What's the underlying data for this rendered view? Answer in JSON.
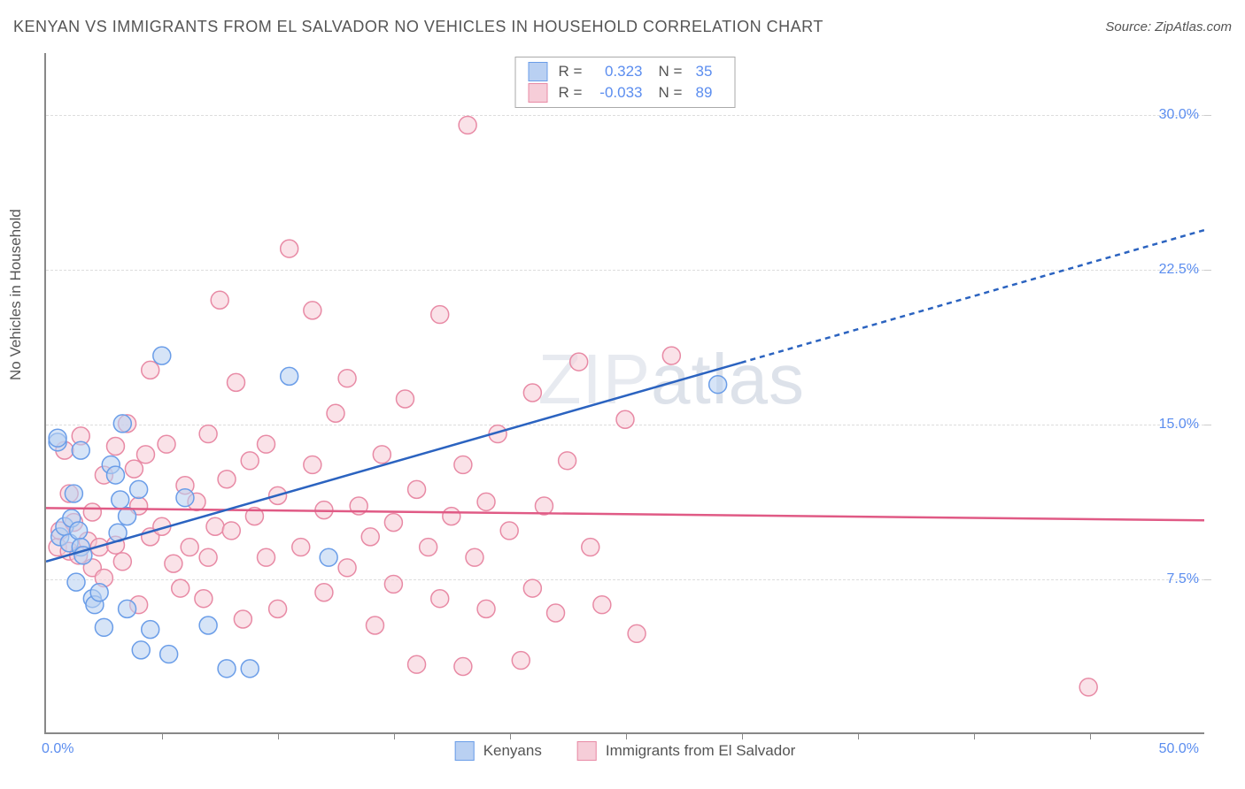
{
  "title": "KENYAN VS IMMIGRANTS FROM EL SALVADOR NO VEHICLES IN HOUSEHOLD CORRELATION CHART",
  "source_label": "Source: ",
  "source_value": "ZipAtlas.com",
  "ylabel": "No Vehicles in Household",
  "watermark_a": "ZIP",
  "watermark_b": "atlas",
  "chart": {
    "type": "scatter",
    "xlim": [
      0,
      50
    ],
    "ylim": [
      0,
      33
    ],
    "xtick_labels": {
      "min": "0.0%",
      "max": "50.0%"
    },
    "ytick_labels": [
      "7.5%",
      "15.0%",
      "22.5%",
      "30.0%"
    ],
    "ytick_values": [
      7.5,
      15.0,
      22.5,
      30.0
    ],
    "xtick_minor": [
      5,
      10,
      15,
      20,
      25,
      30,
      35,
      40,
      45
    ],
    "grid_color": "#dddddd",
    "axis_color": "#888888",
    "background_color": "#ffffff",
    "tick_label_color": "#5b8def",
    "axis_label_color": "#555555",
    "title_color": "#555555",
    "title_fontsize": 18,
    "label_fontsize": 17,
    "tick_fontsize": 16,
    "marker_radius": 10,
    "marker_stroke_width": 1.5,
    "fill_opacity": 0.18,
    "series": [
      {
        "key": "kenyans",
        "label": "Kenyans",
        "color_stroke": "#6a9de8",
        "color_fill": "#b9d0f2",
        "r_label": "R =",
        "r_value": "0.323",
        "n_label": "N =",
        "n_value": "35",
        "trend": {
          "x1": 0,
          "y1": 8.3,
          "x2": 50,
          "y2": 24.4,
          "solid_until_x": 30,
          "stroke": "#2b63c0",
          "width": 2.5,
          "dash": "6 5"
        },
        "points": [
          [
            0.5,
            14.1
          ],
          [
            0.5,
            14.3
          ],
          [
            0.6,
            9.5
          ],
          [
            0.8,
            10.0
          ],
          [
            1.0,
            9.2
          ],
          [
            1.1,
            10.4
          ],
          [
            1.2,
            11.6
          ],
          [
            1.3,
            7.3
          ],
          [
            1.4,
            9.8
          ],
          [
            1.5,
            9.0
          ],
          [
            1.5,
            13.7
          ],
          [
            1.6,
            8.6
          ],
          [
            2.0,
            6.5
          ],
          [
            2.1,
            6.2
          ],
          [
            2.3,
            6.8
          ],
          [
            2.5,
            5.1
          ],
          [
            2.8,
            13.0
          ],
          [
            3.0,
            12.5
          ],
          [
            3.1,
            9.7
          ],
          [
            3.2,
            11.3
          ],
          [
            3.3,
            15.0
          ],
          [
            3.5,
            10.5
          ],
          [
            3.5,
            6.0
          ],
          [
            4.0,
            11.8
          ],
          [
            4.1,
            4.0
          ],
          [
            4.5,
            5.0
          ],
          [
            5.0,
            18.3
          ],
          [
            5.3,
            3.8
          ],
          [
            6.0,
            11.4
          ],
          [
            7.0,
            5.2
          ],
          [
            7.8,
            3.1
          ],
          [
            8.8,
            3.1
          ],
          [
            10.5,
            17.3
          ],
          [
            12.2,
            8.5
          ],
          [
            29.0,
            16.9
          ]
        ]
      },
      {
        "key": "elsalvador",
        "label": "Immigrants from El Salvador",
        "color_stroke": "#e88aa5",
        "color_fill": "#f6cdd8",
        "r_label": "R =",
        "r_value": "-0.033",
        "n_label": "N =",
        "n_value": "89",
        "trend": {
          "x1": 0,
          "y1": 10.9,
          "x2": 50,
          "y2": 10.3,
          "solid_until_x": 50,
          "stroke": "#e05a85",
          "width": 2.5,
          "dash": ""
        },
        "points": [
          [
            0.5,
            9.0
          ],
          [
            0.6,
            9.8
          ],
          [
            0.8,
            13.7
          ],
          [
            1.0,
            11.6
          ],
          [
            1.0,
            8.8
          ],
          [
            1.2,
            10.2
          ],
          [
            1.4,
            8.6
          ],
          [
            1.5,
            14.4
          ],
          [
            1.8,
            9.3
          ],
          [
            2.0,
            10.7
          ],
          [
            2.0,
            8.0
          ],
          [
            2.3,
            9.0
          ],
          [
            2.5,
            12.5
          ],
          [
            2.5,
            7.5
          ],
          [
            3.0,
            13.9
          ],
          [
            3.0,
            9.1
          ],
          [
            3.3,
            8.3
          ],
          [
            3.5,
            15.0
          ],
          [
            3.8,
            12.8
          ],
          [
            4.0,
            11.0
          ],
          [
            4.0,
            6.2
          ],
          [
            4.3,
            13.5
          ],
          [
            4.5,
            9.5
          ],
          [
            4.5,
            17.6
          ],
          [
            5.0,
            10.0
          ],
          [
            5.2,
            14.0
          ],
          [
            5.5,
            8.2
          ],
          [
            5.8,
            7.0
          ],
          [
            6.0,
            12.0
          ],
          [
            6.2,
            9.0
          ],
          [
            6.5,
            11.2
          ],
          [
            6.8,
            6.5
          ],
          [
            7.0,
            14.5
          ],
          [
            7.0,
            8.5
          ],
          [
            7.3,
            10.0
          ],
          [
            7.5,
            21.0
          ],
          [
            7.8,
            12.3
          ],
          [
            8.0,
            9.8
          ],
          [
            8.2,
            17.0
          ],
          [
            8.5,
            5.5
          ],
          [
            8.8,
            13.2
          ],
          [
            9.0,
            10.5
          ],
          [
            9.5,
            8.5
          ],
          [
            9.5,
            14.0
          ],
          [
            10.0,
            11.5
          ],
          [
            10.0,
            6.0
          ],
          [
            10.5,
            23.5
          ],
          [
            11.0,
            9.0
          ],
          [
            11.5,
            13.0
          ],
          [
            11.5,
            20.5
          ],
          [
            12.0,
            10.8
          ],
          [
            12.0,
            6.8
          ],
          [
            12.5,
            15.5
          ],
          [
            13.0,
            8.0
          ],
          [
            13.0,
            17.2
          ],
          [
            13.5,
            11.0
          ],
          [
            14.0,
            9.5
          ],
          [
            14.2,
            5.2
          ],
          [
            14.5,
            13.5
          ],
          [
            15.0,
            10.2
          ],
          [
            15.0,
            7.2
          ],
          [
            15.5,
            16.2
          ],
          [
            16.0,
            11.8
          ],
          [
            16.0,
            3.3
          ],
          [
            16.5,
            9.0
          ],
          [
            17.0,
            20.3
          ],
          [
            17.0,
            6.5
          ],
          [
            17.5,
            10.5
          ],
          [
            18.0,
            3.2
          ],
          [
            18.0,
            13.0
          ],
          [
            18.2,
            29.5
          ],
          [
            18.5,
            8.5
          ],
          [
            19.0,
            11.2
          ],
          [
            19.0,
            6.0
          ],
          [
            19.5,
            14.5
          ],
          [
            20.0,
            9.8
          ],
          [
            20.5,
            3.5
          ],
          [
            21.0,
            7.0
          ],
          [
            21.0,
            16.5
          ],
          [
            21.5,
            11.0
          ],
          [
            22.0,
            5.8
          ],
          [
            22.5,
            13.2
          ],
          [
            23.0,
            18.0
          ],
          [
            23.5,
            9.0
          ],
          [
            24.0,
            6.2
          ],
          [
            25.0,
            15.2
          ],
          [
            25.5,
            4.8
          ],
          [
            27.0,
            18.3
          ],
          [
            45.0,
            2.2
          ]
        ]
      }
    ]
  }
}
